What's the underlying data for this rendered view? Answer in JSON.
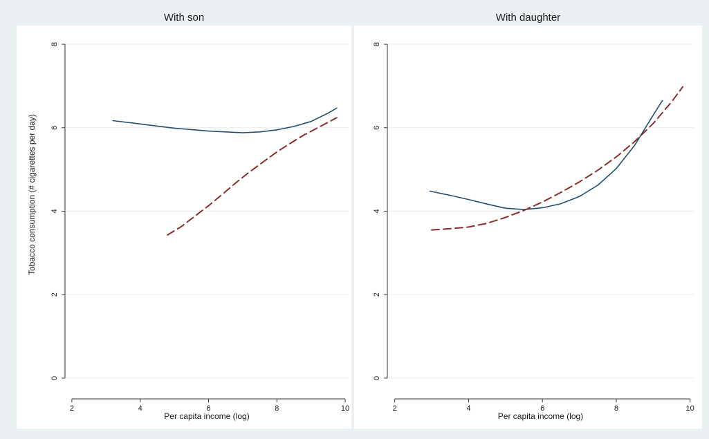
{
  "colors": {
    "figure_background": "#ebf0f3",
    "plot_background": "#ffffff",
    "solid_line": "#1f4e6e",
    "dashed_line": "#8b2c2c",
    "grid": "#e6ecef",
    "axis": "#333333"
  },
  "chart_data": [
    {
      "type": "line",
      "title": "With son",
      "xlabel": "Per capita income (log)",
      "ylabel": "Tobacco consumption (# cigarettes per day)",
      "xlim": [
        1.8,
        10.1
      ],
      "ylim": [
        -0.3,
        8.1
      ],
      "x_ticks": [
        2,
        4,
        6,
        8,
        10
      ],
      "y_ticks": [
        0,
        2,
        4,
        6,
        8
      ],
      "grid": true,
      "series": [
        {
          "style": "solid",
          "x": [
            3.2,
            4,
            5,
            6,
            6.5,
            7,
            7.5,
            8,
            8.5,
            9,
            9.5,
            9.75
          ],
          "y": [
            6.17,
            6.09,
            5.99,
            5.92,
            5.9,
            5.88,
            5.9,
            5.95,
            6.03,
            6.15,
            6.35,
            6.47
          ]
        },
        {
          "style": "dashed",
          "x": [
            4.8,
            5.2,
            5.6,
            6,
            6.4,
            6.8,
            7.2,
            7.6,
            8,
            8.4,
            8.8,
            9.2,
            9.75
          ],
          "y": [
            3.43,
            3.63,
            3.88,
            4.13,
            4.4,
            4.68,
            4.94,
            5.18,
            5.42,
            5.63,
            5.83,
            6.0,
            6.24
          ]
        }
      ]
    },
    {
      "type": "line",
      "title": "With daughter",
      "xlabel": "Per capita income (log)",
      "ylabel": "",
      "xlim": [
        1.8,
        10.1
      ],
      "ylim": [
        -0.3,
        8.1
      ],
      "x_ticks": [
        2,
        4,
        6,
        8,
        10
      ],
      "y_ticks": [
        0,
        2,
        4,
        6,
        8
      ],
      "grid": true,
      "series": [
        {
          "style": "solid",
          "x": [
            2.95,
            3.5,
            4,
            4.5,
            5,
            5.5,
            6,
            6.5,
            7,
            7.5,
            8,
            8.5,
            9,
            9.25
          ],
          "y": [
            4.48,
            4.38,
            4.28,
            4.17,
            4.07,
            4.04,
            4.08,
            4.18,
            4.35,
            4.62,
            5.02,
            5.58,
            6.3,
            6.65
          ]
        },
        {
          "style": "dashed",
          "x": [
            3.0,
            3.5,
            4.0,
            4.5,
            5.0,
            5.5,
            6.0,
            6.5,
            7.0,
            7.5,
            8.0,
            8.5,
            9.0,
            9.5,
            9.8
          ],
          "y": [
            3.55,
            3.58,
            3.62,
            3.71,
            3.85,
            4.02,
            4.22,
            4.45,
            4.7,
            4.98,
            5.3,
            5.67,
            6.1,
            6.62,
            6.98
          ]
        }
      ]
    }
  ]
}
